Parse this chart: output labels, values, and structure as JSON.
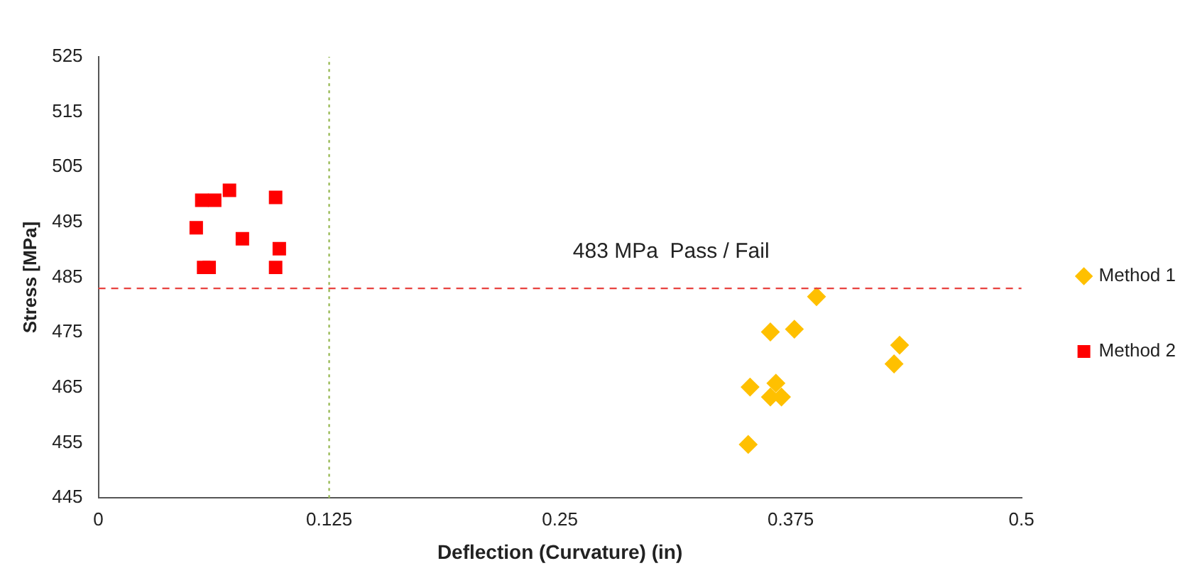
{
  "chart_data": {
    "type": "scatter",
    "xlabel": "Deflection (Curvature) (in)",
    "ylabel": "Stress [MPa]",
    "xlim": [
      0,
      0.5
    ],
    "xticks": [
      0,
      0.125,
      0.25,
      0.375,
      0.5
    ],
    "ylim": [
      445,
      525
    ],
    "yticks": [
      445,
      455,
      465,
      475,
      485,
      495,
      505,
      515,
      525
    ],
    "grid": false,
    "legend": "right",
    "series": [
      {
        "name": "Method 1",
        "color": "#ffc000",
        "marker": "diamond",
        "x": [
          0.389,
          0.364,
          0.377,
          0.434,
          0.431,
          0.353,
          0.367,
          0.364,
          0.37,
          0.352
        ],
        "values": [
          481.5,
          475.1,
          475.6,
          472.7,
          469.3,
          465.1,
          465.8,
          463.3,
          463.3,
          454.7
        ]
      },
      {
        "name": "Method 2",
        "color": "#ff0000",
        "marker": "square",
        "x": [
          0.053,
          0.056,
          0.063,
          0.071,
          0.078,
          0.096,
          0.098,
          0.096,
          0.057,
          0.06
        ],
        "values": [
          494,
          499,
          499,
          500.8,
          492,
          499.5,
          490.2,
          486.8,
          486.8,
          486.8
        ]
      }
    ],
    "ref_lines": [
      {
        "axis": "y",
        "value": 483,
        "color": "#e8423f",
        "line_style": "dashed"
      },
      {
        "axis": "x",
        "value": 0.125,
        "color": "#9bbb59",
        "line_style": "dotted"
      }
    ],
    "annotations": [
      {
        "text": "483 MPa  Pass / Fail",
        "x": 0.257,
        "y": 483
      }
    ]
  }
}
